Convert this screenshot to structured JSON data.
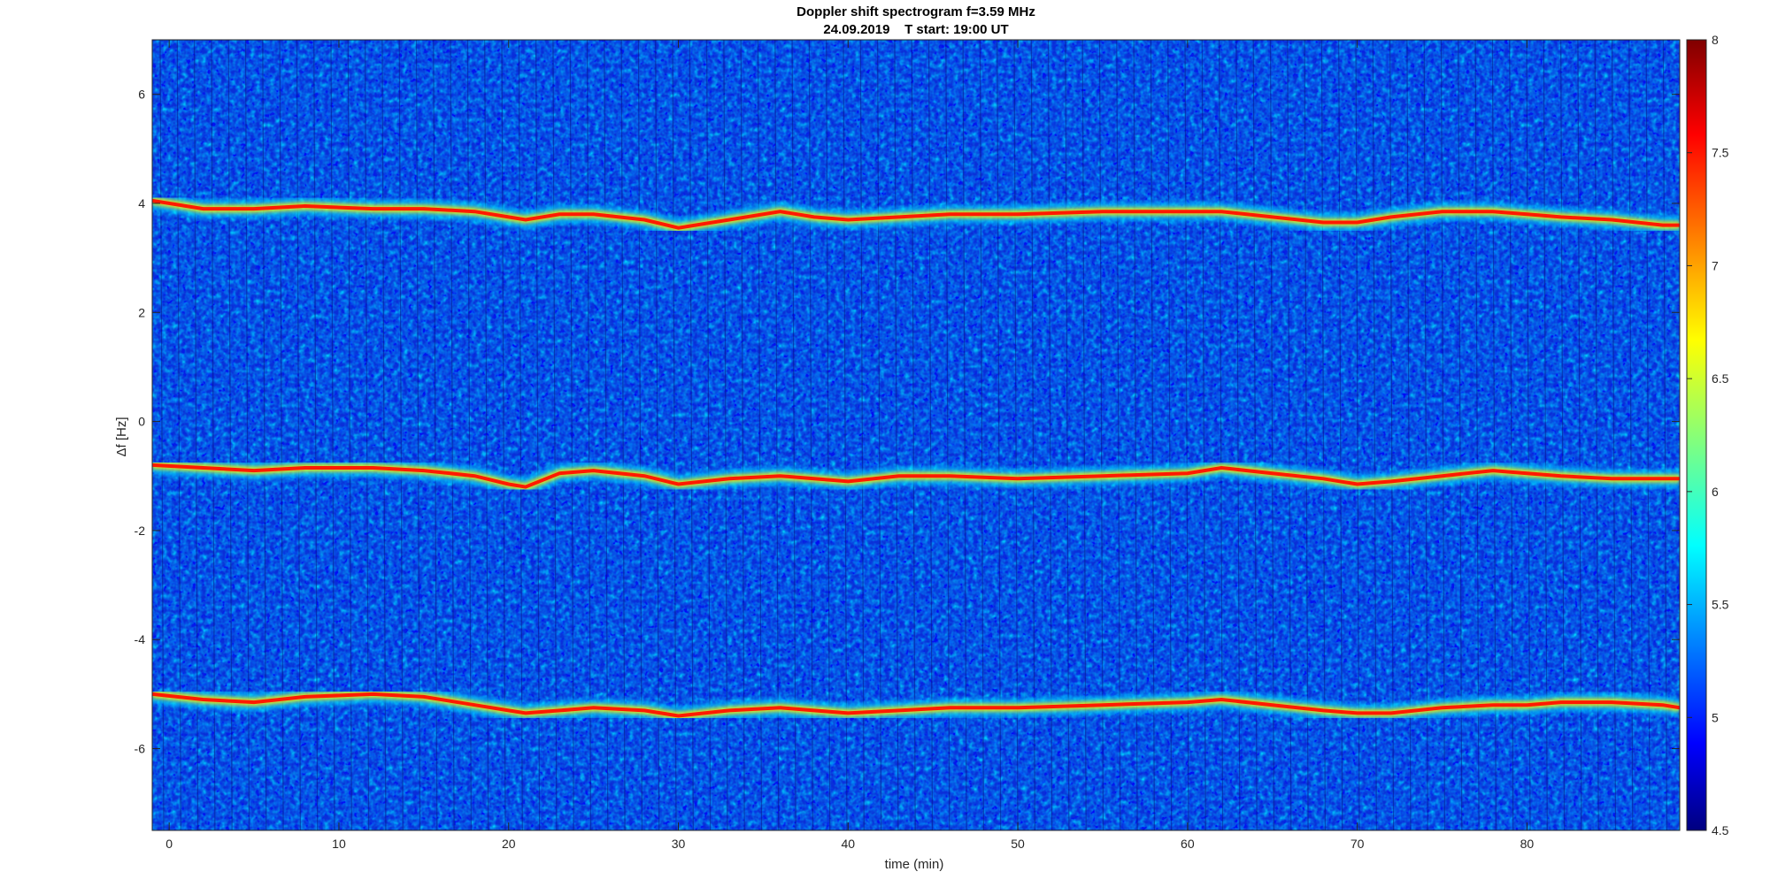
{
  "chart_data": {
    "type": "heatmap",
    "title": "Doppler shift spectrogram f=3.59 MHz",
    "subtitle": "24.09.2019    T start: 19:00 UT",
    "xlabel": "time (min)",
    "ylabel": "Δf [Hz]",
    "xlim": [
      -1,
      89
    ],
    "ylim": [
      -7.5,
      7
    ],
    "xticks": [
      0,
      10,
      20,
      30,
      40,
      50,
      60,
      70,
      80
    ],
    "yticks": [
      -6,
      -4,
      -2,
      0,
      2,
      4,
      6
    ],
    "colorbar": {
      "range": [
        4.5,
        8
      ],
      "ticks": [
        4.5,
        5,
        5.5,
        6,
        6.5,
        7,
        7.5,
        8
      ],
      "colormap": "jet"
    },
    "grid": false,
    "series": [
      {
        "x": [
          -1,
          2,
          5,
          8,
          12,
          15,
          18,
          20,
          21,
          23,
          25,
          28,
          30,
          33,
          36,
          38,
          40,
          43,
          46,
          50,
          55,
          60,
          62,
          65,
          68,
          70,
          72,
          75,
          78,
          80,
          82,
          85,
          88,
          89
        ],
        "values": [
          4.05,
          3.9,
          3.9,
          3.95,
          3.9,
          3.9,
          3.85,
          3.75,
          3.7,
          3.8,
          3.8,
          3.7,
          3.55,
          3.7,
          3.85,
          3.75,
          3.7,
          3.75,
          3.8,
          3.8,
          3.85,
          3.85,
          3.85,
          3.75,
          3.65,
          3.65,
          3.75,
          3.85,
          3.85,
          3.8,
          3.75,
          3.7,
          3.6,
          3.6
        ]
      },
      {
        "x": [
          -1,
          2,
          5,
          8,
          12,
          15,
          18,
          20,
          21,
          23,
          25,
          28,
          30,
          33,
          36,
          38,
          40,
          43,
          46,
          50,
          55,
          60,
          62,
          65,
          68,
          70,
          72,
          75,
          78,
          80,
          82,
          85,
          88,
          89
        ],
        "values": [
          -0.8,
          -0.85,
          -0.9,
          -0.85,
          -0.85,
          -0.9,
          -1.0,
          -1.15,
          -1.2,
          -0.95,
          -0.9,
          -1.0,
          -1.15,
          -1.05,
          -1.0,
          -1.05,
          -1.1,
          -1.0,
          -1.0,
          -1.05,
          -1.0,
          -0.95,
          -0.85,
          -0.95,
          -1.05,
          -1.15,
          -1.1,
          -1.0,
          -0.9,
          -0.95,
          -1.0,
          -1.05,
          -1.05,
          -1.05
        ]
      },
      {
        "x": [
          -1,
          2,
          5,
          8,
          12,
          15,
          18,
          20,
          21,
          23,
          25,
          28,
          30,
          33,
          36,
          38,
          40,
          43,
          46,
          50,
          55,
          60,
          62,
          65,
          68,
          70,
          72,
          75,
          78,
          80,
          82,
          85,
          88,
          89
        ],
        "values": [
          -5.0,
          -5.1,
          -5.15,
          -5.05,
          -5.0,
          -5.05,
          -5.2,
          -5.3,
          -5.35,
          -5.3,
          -5.25,
          -5.3,
          -5.4,
          -5.3,
          -5.25,
          -5.3,
          -5.35,
          -5.3,
          -5.25,
          -5.25,
          -5.2,
          -5.15,
          -5.1,
          -5.2,
          -5.3,
          -5.35,
          -5.35,
          -5.25,
          -5.2,
          -5.2,
          -5.15,
          -5.15,
          -5.2,
          -5.25
        ]
      }
    ]
  }
}
